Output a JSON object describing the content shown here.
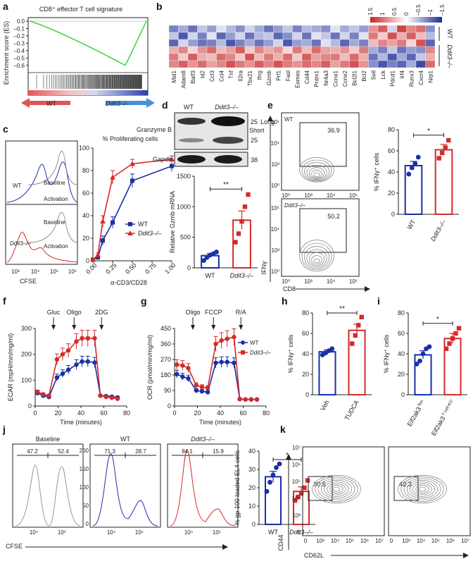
{
  "figure": {
    "panel_letters": [
      "a",
      "b",
      "c",
      "d",
      "e",
      "f",
      "g",
      "h",
      "i",
      "j",
      "k"
    ]
  },
  "chart_data": [
    {
      "id": "a",
      "type": "line",
      "title": "CD8⁺ effector T cell signature",
      "ylabel": "Enrichment score (ES)",
      "yticks": [
        "0.0",
        "–0.1",
        "–0.2",
        "–0.3",
        "–0.4",
        "–0.5",
        "–0.6"
      ],
      "ylim": [
        -0.65,
        0.0
      ],
      "left_label": "WT",
      "right_label": "Ddit3–/–",
      "min_es": -0.6,
      "line_color": "#3fd03f"
    },
    {
      "id": "b",
      "type": "heatmap",
      "genes": [
        "Mid1",
        "Adam8",
        "Batf3",
        "Id2",
        "Ccl3",
        "Ccl4",
        "Tnf",
        "Il2ra",
        "Tbx21",
        "Ifng",
        "Gzmb",
        "Prf1",
        "Fasl",
        "Eomes",
        "Cd44",
        "Prdm1",
        "Nr4a3",
        "Ccne1",
        "Ccne2",
        "Bcl2l1",
        "Bcl2",
        "Sell",
        "Lck",
        "Pdcd1",
        "Irf4",
        "Runx3",
        "Cxcr4",
        "Nrp1"
      ],
      "groups": [
        "WT",
        "Ddit3–/–"
      ],
      "rows_per_group": 3,
      "scale_ticks": [
        "1.5",
        "1",
        "0.5",
        "0",
        "–0.5",
        "–1",
        "–1.5"
      ],
      "values": [
        [
          -0.9,
          -0.6,
          -1.0,
          -0.4,
          -0.7,
          -0.2,
          -0.5,
          -0.8,
          -0.3,
          -0.6,
          -1.0,
          -0.7,
          -0.4,
          -0.9,
          -0.5,
          -0.6,
          -0.8,
          -0.2,
          -0.6,
          -0.4,
          -0.7,
          0.8,
          1.2,
          -0.3,
          1.4,
          0.9,
          1.1,
          -0.8
        ],
        [
          -0.4,
          -1.2,
          -0.3,
          -0.9,
          -0.2,
          -1.1,
          -0.7,
          -0.3,
          -1.0,
          -0.5,
          -0.4,
          -1.1,
          -0.8,
          -0.3,
          -1.0,
          -0.2,
          -0.4,
          -1.0,
          -0.3,
          -0.9,
          -0.2,
          1.0,
          0.4,
          1.3,
          0.6,
          1.2,
          0.5,
          -0.5
        ],
        [
          -1.1,
          -0.3,
          -0.7,
          -1.0,
          -0.9,
          -0.5,
          -1.2,
          -0.9,
          -0.6,
          -1.0,
          -0.7,
          -0.3,
          -1.2,
          -0.7,
          -0.6,
          -1.0,
          -0.2,
          -0.5,
          -1.1,
          -0.6,
          -0.9,
          0.5,
          0.9,
          0.7,
          1.0,
          0.3,
          1.3,
          -1.1
        ],
        [
          0.6,
          0.9,
          0.3,
          0.8,
          1.1,
          0.5,
          0.7,
          1.2,
          0.4,
          0.9,
          0.6,
          0.8,
          0.3,
          1.0,
          0.5,
          1.1,
          0.7,
          0.6,
          0.8,
          0.4,
          1.0,
          -0.6,
          -0.9,
          -0.4,
          -1.0,
          -0.7,
          -0.8,
          0.9
        ],
        [
          1.0,
          0.4,
          1.2,
          0.6,
          0.5,
          1.1,
          0.9,
          0.4,
          1.3,
          0.5,
          1.0,
          0.6,
          1.1,
          0.4,
          1.2,
          0.7,
          0.9,
          1.0,
          0.5,
          1.1,
          0.6,
          -1.0,
          -0.5,
          -1.2,
          -0.6,
          -1.1,
          -0.4,
          0.6
        ],
        [
          0.9,
          1.2,
          0.8,
          1.1,
          0.7,
          0.9,
          1.3,
          1.0,
          0.8,
          1.2,
          0.9,
          1.3,
          1.0,
          0.8,
          1.1,
          0.9,
          1.2,
          0.7,
          1.0,
          1.3,
          0.8,
          -0.8,
          -1.2,
          -0.9,
          -1.1,
          -0.6,
          -1.3,
          1.1
        ]
      ]
    },
    {
      "id": "c",
      "type": "line",
      "title": "% Proliferating cells",
      "xlabel": "α-CD3/CD28",
      "xlim": [
        0,
        1.0
      ],
      "xticks": [
        "0.00",
        "0.25",
        "0.50",
        "0.75",
        "1.00"
      ],
      "ylim": [
        0,
        100
      ],
      "yticks": [
        "0",
        "20",
        "40",
        "60",
        "80",
        "100"
      ],
      "x": [
        0.0,
        0.0625,
        0.125,
        0.25,
        0.5,
        1.0
      ],
      "series": [
        {
          "name": "WT",
          "values": [
            1,
            3,
            18,
            34,
            71,
            84
          ],
          "errors": [
            0.5,
            1,
            4,
            5,
            6,
            5
          ],
          "color": "#1a2fa8"
        },
        {
          "name": "Ddit3–/–",
          "values": [
            1,
            5,
            35,
            74,
            86,
            90
          ],
          "errors": [
            0.5,
            2,
            5,
            6,
            4,
            3
          ],
          "color": "#d42a2a"
        }
      ],
      "histogram": {
        "xlabel": "CFSE",
        "xticks": [
          "10³",
          "10⁴",
          "10⁵",
          "10⁶"
        ],
        "tracks": [
          {
            "label": "WT",
            "baseline": "Baseline",
            "activation": "Activation",
            "color": "#1a2fa8"
          },
          {
            "label": "Ddit3–/–",
            "baseline": "Baseline",
            "activation": "Activation",
            "color": "#d42a2a"
          }
        ]
      }
    },
    {
      "id": "d",
      "type": "bar",
      "blot": {
        "columns": [
          "WT",
          "Ddit3–/–"
        ],
        "rows": [
          "Granzyme B",
          "Gapdh"
        ],
        "markers": [
          "25",
          "Long",
          "25",
          "Short",
          "38"
        ]
      },
      "ylabel": "Relative Gzmb mRNA",
      "ylim": [
        0,
        1500
      ],
      "yticks": [
        "0",
        "500",
        "1000",
        "1500"
      ],
      "categories": [
        "WT",
        "Ddit3–/–"
      ],
      "values": [
        200,
        780
      ],
      "errors": [
        30,
        150
      ],
      "points": [
        [
          120,
          170,
          210,
          230,
          260
        ],
        [
          420,
          560,
          760,
          1000,
          1200
        ]
      ],
      "significance": "**",
      "colors": [
        "#1a2fa8",
        "#d42a2a"
      ]
    },
    {
      "id": "e",
      "type": "bar",
      "flow": {
        "gates": [
          "36.9",
          "50.2"
        ],
        "labels": [
          "WT",
          "Ddit3–/–"
        ],
        "xlabel": "CD8",
        "ylabel": "IFNγ",
        "ticks": [
          "10⁰",
          "10³",
          "10⁴",
          "10⁵"
        ]
      },
      "ylabel": "% IFNγ⁺ cells",
      "ylim": [
        0,
        80
      ],
      "yticks": [
        "0",
        "20",
        "40",
        "60",
        "80"
      ],
      "categories": [
        "WT",
        "Ddit3–/–"
      ],
      "values": [
        46,
        61
      ],
      "errors": [
        4,
        5
      ],
      "points": [
        [
          38,
          44,
          48,
          54
        ],
        [
          53,
          58,
          63,
          70
        ]
      ],
      "significance": "*",
      "colors": [
        "#1a2fa8",
        "#d42a2a"
      ]
    },
    {
      "id": "f",
      "type": "line",
      "xlabel": "Time (minutes)",
      "ylabel": "ECAR (mpH/min/mg/ml)",
      "xlim": [
        0,
        80
      ],
      "xticks": [
        "0",
        "20",
        "40",
        "60",
        "80"
      ],
      "ylim": [
        0,
        300
      ],
      "yticks": [
        "0",
        "100",
        "200",
        "300"
      ],
      "injections": [
        "Gluc",
        "Oligo",
        "2DG"
      ],
      "x": [
        2,
        7,
        12,
        19,
        24,
        29,
        36,
        41,
        46,
        52,
        57,
        62,
        67,
        72
      ],
      "series": [
        {
          "name": "WT",
          "values": [
            50,
            40,
            35,
            110,
            125,
            140,
            160,
            172,
            172,
            168,
            40,
            38,
            36,
            33
          ],
          "color": "#1a2fa8"
        },
        {
          "name": "Ddit3–/–",
          "values": [
            55,
            45,
            40,
            180,
            200,
            215,
            250,
            262,
            262,
            262,
            40,
            35,
            32,
            28
          ],
          "color": "#d42a2a"
        }
      ]
    },
    {
      "id": "g",
      "type": "line",
      "xlabel": "Time (minutes)",
      "ylabel": "OCR (pmol/min/mg/ml)",
      "xlim": [
        0,
        80
      ],
      "xticks": [
        "0",
        "20",
        "40",
        "60",
        "80"
      ],
      "ylim": [
        0,
        450
      ],
      "yticks": [
        "0",
        "90",
        "180",
        "270",
        "360",
        "450"
      ],
      "injections": [
        "Oligo",
        "FCCP",
        "R/A"
      ],
      "x": [
        2,
        7,
        12,
        19,
        24,
        29,
        36,
        41,
        46,
        52,
        57,
        62,
        67,
        72
      ],
      "series": [
        {
          "name": "WT",
          "values": [
            185,
            170,
            160,
            90,
            85,
            80,
            250,
            255,
            255,
            250,
            40,
            38,
            38,
            38
          ],
          "color": "#1a2fa8"
        },
        {
          "name": "Ddit3–/–",
          "values": [
            240,
            235,
            220,
            120,
            110,
            105,
            360,
            380,
            390,
            400,
            40,
            38,
            38,
            38
          ],
          "color": "#d42a2a"
        }
      ]
    },
    {
      "id": "h",
      "type": "bar",
      "ylabel": "% IFNγ⁺ cells",
      "ylim": [
        0,
        80
      ],
      "yticks": [
        "0",
        "20",
        "40",
        "60",
        "80"
      ],
      "categories": [
        "Veh",
        "TUDCA"
      ],
      "values": [
        42,
        63
      ],
      "errors": [
        2,
        6
      ],
      "points": [
        [
          39,
          41,
          43,
          45
        ],
        [
          50,
          58,
          68,
          76
        ]
      ],
      "significance": "**",
      "colors": [
        "#1a2fa8",
        "#d42a2a"
      ]
    },
    {
      "id": "i",
      "type": "bar",
      "ylabel": "% IFNγ⁺ cells",
      "ylim": [
        0,
        80
      ],
      "yticks": [
        "0",
        "20",
        "40",
        "60",
        "80"
      ],
      "categories": [
        "Eif2ak3",
        "Eif2ak3"
      ],
      "category_sup": [
        "flox",
        "T cell-KO"
      ],
      "values": [
        39,
        55
      ],
      "errors": [
        4,
        5
      ],
      "points": [
        [
          30,
          33,
          40,
          45,
          47
        ],
        [
          45,
          50,
          55,
          60,
          65
        ]
      ],
      "significance": "*",
      "colors": [
        "#1a2fa8",
        "#d42a2a"
      ]
    },
    {
      "id": "j",
      "type": "bar",
      "histograms": [
        {
          "title": "Baseline",
          "gates": [
            "47.2",
            "52.4"
          ],
          "color": "#999999"
        },
        {
          "title": "WT",
          "gates": [
            "71.3",
            "28.7"
          ],
          "color": "#1a2fa8"
        },
        {
          "title": "Ddit3–/–",
          "gates": [
            "84.1",
            "15.9"
          ],
          "color": "#d42a2a"
        }
      ],
      "hist_xlabel": "CFSE",
      "hist_ticks": [
        "10⁴",
        "10⁵"
      ],
      "hist_yticks": [
        "0",
        "50",
        "100",
        "150",
        "200"
      ],
      "ylabel": "% gp 100 loaded EL4 cells",
      "ylim": [
        0,
        40
      ],
      "yticks": [
        "0",
        "10",
        "20",
        "30",
        "40"
      ],
      "categories": [
        "WT",
        "Ddit3–/–"
      ],
      "values": [
        26,
        18
      ],
      "errors": [
        3,
        2.5
      ],
      "points": [
        [
          18,
          23,
          27,
          31,
          33
        ],
        [
          13,
          15,
          17,
          20,
          24
        ]
      ],
      "significance": "*",
      "colors": [
        "#1a2fa8",
        "#d42a2a"
      ]
    },
    {
      "id": "k",
      "type": "scatter",
      "gates": [
        "30.5",
        "42.3"
      ],
      "xlabel": "CD62L",
      "ylabel": "CD44",
      "ticks": [
        "0",
        "10³",
        "10⁴",
        "10⁵",
        "10⁶",
        "10⁷"
      ]
    }
  ]
}
